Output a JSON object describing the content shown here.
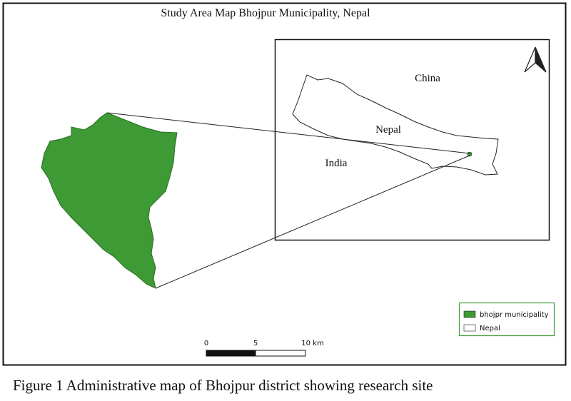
{
  "map": {
    "title": "Study Area Map Bhojpur Municipality, Nepal",
    "labels": {
      "china": "China",
      "nepal": "Nepal",
      "india": "India"
    },
    "legend": [
      "bhojpr municipality",
      "Nepal"
    ],
    "scale": [
      "0",
      "5",
      "10 km"
    ]
  },
  "caption": "Figure 1 Administrative map of Bhojpur district showing research site"
}
